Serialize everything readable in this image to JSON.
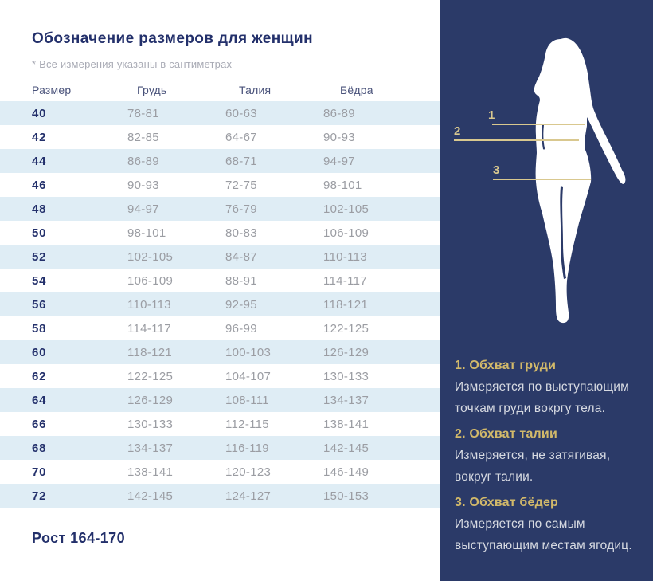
{
  "header": {
    "title": "Обозначение размеров для женщин",
    "note": "* Все измерения указаны в сантиметрах"
  },
  "table": {
    "columns": [
      "Размер",
      "Грудь",
      "Талия",
      "Бёдра"
    ],
    "rows": [
      [
        "40",
        "78-81",
        "60-63",
        "86-89"
      ],
      [
        "42",
        "82-85",
        "64-67",
        "90-93"
      ],
      [
        "44",
        "86-89",
        "68-71",
        "94-97"
      ],
      [
        "46",
        "90-93",
        "72-75",
        "98-101"
      ],
      [
        "48",
        "94-97",
        "76-79",
        "102-105"
      ],
      [
        "50",
        "98-101",
        "80-83",
        "106-109"
      ],
      [
        "52",
        "102-105",
        "84-87",
        "110-113"
      ],
      [
        "54",
        "106-109",
        "88-91",
        "114-117"
      ],
      [
        "56",
        "110-113",
        "92-95",
        "118-121"
      ],
      [
        "58",
        "114-117",
        "96-99",
        "122-125"
      ],
      [
        "60",
        "118-121",
        "100-103",
        "126-129"
      ],
      [
        "62",
        "122-125",
        "104-107",
        "130-133"
      ],
      [
        "64",
        "126-129",
        "108-111",
        "134-137"
      ],
      [
        "66",
        "130-133",
        "112-115",
        "138-141"
      ],
      [
        "68",
        "134-137",
        "116-119",
        "142-145"
      ],
      [
        "70",
        "138-141",
        "120-123",
        "146-149"
      ],
      [
        "72",
        "142-145",
        "124-127",
        "150-153"
      ]
    ]
  },
  "footer": {
    "height_range": "Рост 164-170"
  },
  "panel": {
    "marker_labels": [
      "1",
      "2",
      "3"
    ],
    "legend": [
      {
        "title": "1. Обхват груди",
        "text": "Измеряется по  выступающим точкам груди вокргу тела."
      },
      {
        "title": "2. Обхват талии",
        "text": "Измеряется, не затягивая, вокруг талии."
      },
      {
        "title": "3. Обхват бёдер",
        "text": "Измеряется по самым выступающим местам ягодиц."
      }
    ]
  },
  "colors": {
    "panel_navy": "#2B3A68",
    "title_navy": "#23306B",
    "row_alt_blue": "#DFEDF5",
    "value_gray": "#9B9DA3",
    "gold_line": "#D9C88F",
    "gold_heading": "#D2B96A"
  }
}
